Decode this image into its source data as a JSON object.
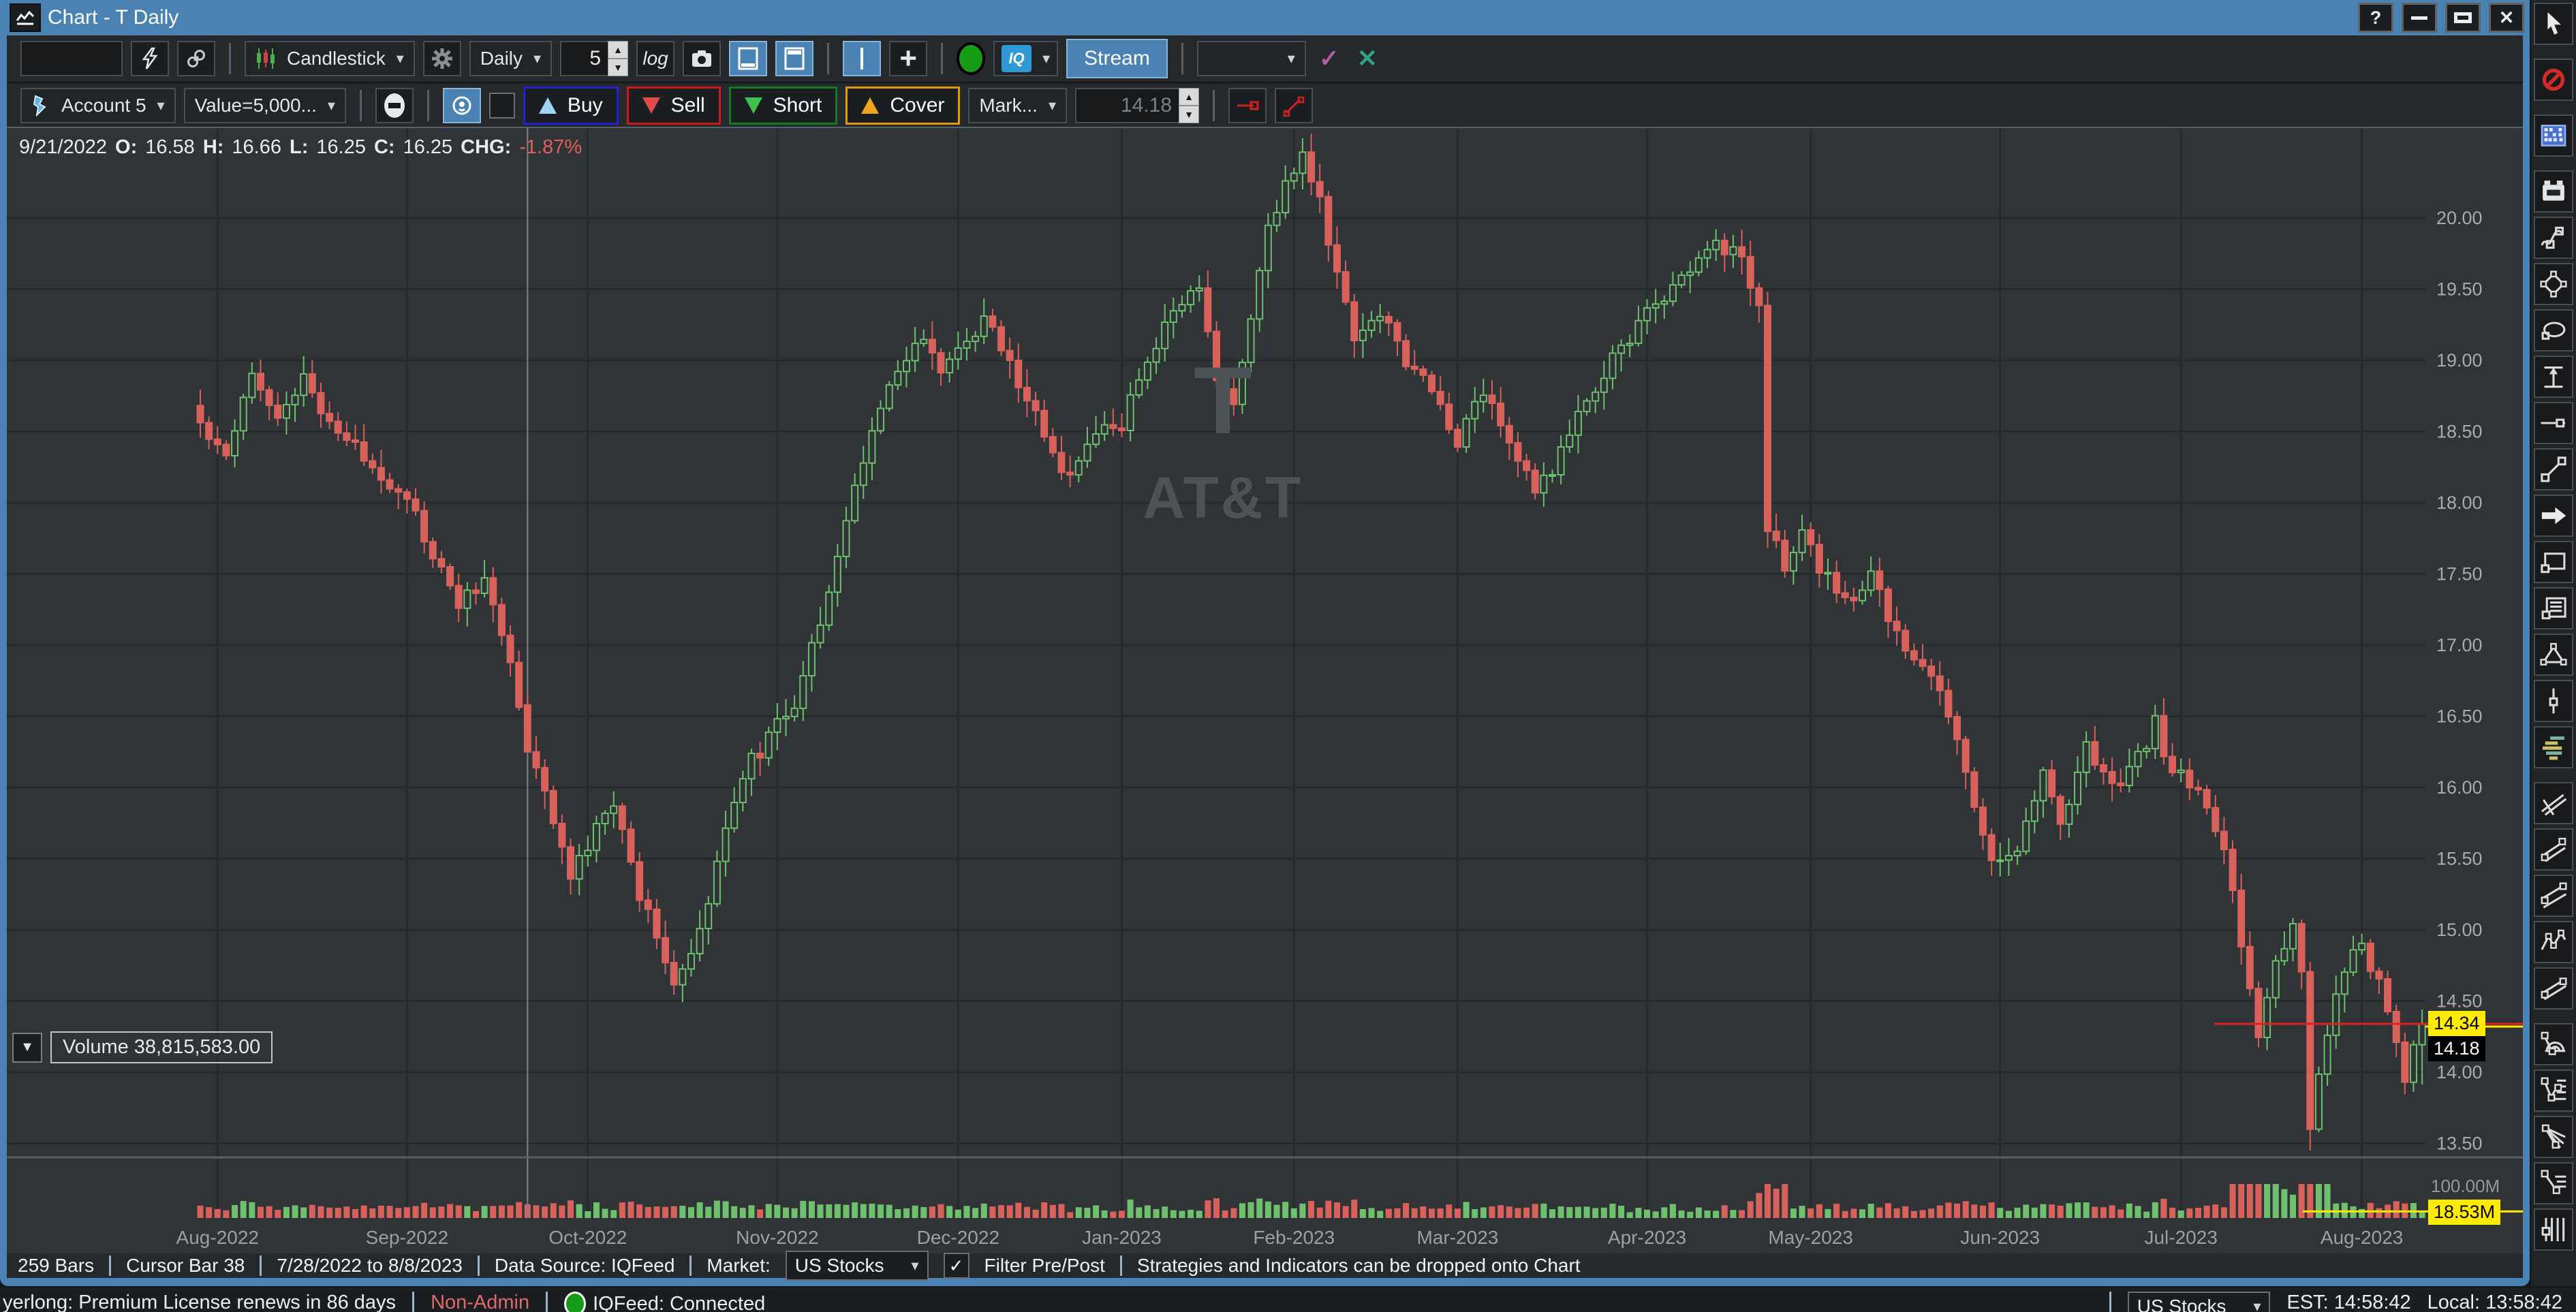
{
  "title_bar": {
    "title": "Chart - T Daily",
    "help": "?"
  },
  "icons": {
    "caret": "▾",
    "check": "✓",
    "cross": "✕",
    "spin_up": "▲",
    "spin_down": "▼",
    "vol_collapse": "▼",
    "close": "✕",
    "plus": "+"
  },
  "toolbar_main": {
    "symbol_input": "",
    "chart_type": "Candlestick",
    "timeframe": "Daily",
    "bars_value": "5",
    "log_label": "log",
    "iq_label": "IQ",
    "stream_label": "Stream",
    "order_dropdown_value": ""
  },
  "toolbar_trade": {
    "account": "Account 5",
    "position_size": "Value=5,000...",
    "buy": "Buy",
    "sell": "Sell",
    "short": "Short",
    "cover": "Cover",
    "order_type": "Mark...",
    "order_price": "14.18"
  },
  "chart": {
    "ohlc": {
      "date": "9/21/2022",
      "o_label": "O:",
      "o": "16.58",
      "h_label": "H:",
      "h": "16.66",
      "l_label": "L:",
      "l": "16.25",
      "c_label": "C:",
      "c": "16.25",
      "chg_label": "CHG:",
      "chg": "-1.87%"
    },
    "watermark_symbol": "T",
    "watermark_name": "AT&T",
    "price_tag": "14.34",
    "cursor_price_tag": "14.18",
    "volume_label": "Volume 38,815,583.00",
    "volume_axis_max": "100.00M",
    "volume_tag": "18.53M"
  },
  "chart_data": {
    "type": "candlestick",
    "symbol": "T",
    "company": "AT&T",
    "timeframe": "Daily",
    "bars": 259,
    "date_range": "7/28/2022 to 8/8/2023",
    "ylim": [
      13.39,
      20.63
    ],
    "price_tick_min": 13.5,
    "price_tick_max": 20.0,
    "price_tick_step": 0.5,
    "months": [
      [
        "Aug-2022",
        2
      ],
      [
        "Sep-2022",
        24
      ],
      [
        "Oct-2022",
        45
      ],
      [
        "Nov-2022",
        67
      ],
      [
        "Dec-2022",
        88
      ],
      [
        "Jan-2023",
        107
      ],
      [
        "Feb-2023",
        127
      ],
      [
        "Mar-2023",
        146
      ],
      [
        "Apr-2023",
        168
      ],
      [
        "May-2023",
        187
      ],
      [
        "Jun-2023",
        209
      ],
      [
        "Jul-2023",
        230
      ],
      [
        "Aug-2023",
        251
      ]
    ],
    "anchors": [
      [
        0,
        18.55
      ],
      [
        3,
        18.35
      ],
      [
        6,
        18.95
      ],
      [
        9,
        18.6
      ],
      [
        12,
        18.85
      ],
      [
        16,
        18.5
      ],
      [
        20,
        18.25
      ],
      [
        24,
        18.05
      ],
      [
        27,
        17.6
      ],
      [
        30,
        17.3
      ],
      [
        33,
        17.45
      ],
      [
        36,
        16.9
      ],
      [
        38,
        16.25
      ],
      [
        41,
        15.8
      ],
      [
        43,
        15.35
      ],
      [
        46,
        15.7
      ],
      [
        48,
        15.9
      ],
      [
        51,
        15.25
      ],
      [
        53,
        15.0
      ],
      [
        55,
        14.6
      ],
      [
        57,
        14.8
      ],
      [
        59,
        15.15
      ],
      [
        61,
        15.75
      ],
      [
        63,
        16.1
      ],
      [
        66,
        16.35
      ],
      [
        69,
        16.6
      ],
      [
        72,
        17.2
      ],
      [
        75,
        17.85
      ],
      [
        78,
        18.55
      ],
      [
        81,
        18.9
      ],
      [
        84,
        19.15
      ],
      [
        86,
        18.95
      ],
      [
        89,
        19.1
      ],
      [
        91,
        19.3
      ],
      [
        95,
        18.85
      ],
      [
        99,
        18.35
      ],
      [
        101,
        18.15
      ],
      [
        104,
        18.5
      ],
      [
        107,
        18.55
      ],
      [
        110,
        19.0
      ],
      [
        113,
        19.35
      ],
      [
        116,
        19.5
      ],
      [
        118,
        18.85
      ],
      [
        120,
        18.7
      ],
      [
        122,
        19.3
      ],
      [
        124,
        19.9
      ],
      [
        126,
        20.25
      ],
      [
        128,
        20.45
      ],
      [
        130,
        20.1
      ],
      [
        132,
        19.6
      ],
      [
        134,
        19.15
      ],
      [
        137,
        19.35
      ],
      [
        140,
        19.0
      ],
      [
        143,
        18.8
      ],
      [
        146,
        18.45
      ],
      [
        149,
        18.8
      ],
      [
        152,
        18.45
      ],
      [
        155,
        18.05
      ],
      [
        158,
        18.35
      ],
      [
        161,
        18.7
      ],
      [
        164,
        19.0
      ],
      [
        167,
        19.25
      ],
      [
        170,
        19.45
      ],
      [
        173,
        19.65
      ],
      [
        176,
        19.85
      ],
      [
        179,
        19.7
      ],
      [
        181,
        19.35
      ],
      [
        182,
        17.85
      ],
      [
        184,
        17.55
      ],
      [
        186,
        17.75
      ],
      [
        189,
        17.45
      ],
      [
        192,
        17.3
      ],
      [
        194,
        17.5
      ],
      [
        197,
        17.05
      ],
      [
        200,
        16.9
      ],
      [
        203,
        16.5
      ],
      [
        206,
        15.9
      ],
      [
        208,
        15.45
      ],
      [
        211,
        15.6
      ],
      [
        214,
        16.1
      ],
      [
        216,
        15.75
      ],
      [
        219,
        16.3
      ],
      [
        222,
        16.0
      ],
      [
        225,
        16.2
      ],
      [
        227,
        16.45
      ],
      [
        229,
        16.1
      ],
      [
        232,
        16.0
      ],
      [
        235,
        15.6
      ],
      [
        237,
        14.9
      ],
      [
        239,
        14.3
      ],
      [
        241,
        14.75
      ],
      [
        243,
        15.0
      ],
      [
        244,
        14.65
      ],
      [
        245,
        13.6
      ],
      [
        247,
        14.3
      ],
      [
        249,
        14.7
      ],
      [
        251,
        14.9
      ],
      [
        253,
        14.6
      ],
      [
        255,
        14.2
      ],
      [
        256,
        13.95
      ],
      [
        258,
        14.34
      ]
    ],
    "cursor_bar": 38,
    "cursor_bar_ohlc": {
      "open": 16.58,
      "high": 16.66,
      "low": 16.25,
      "close": 16.25
    },
    "last_close": 14.34,
    "last_volume_millions": 18.53,
    "volume_axis_max_millions": 100.0,
    "up_color": "#6ec06e",
    "down_color": "#d9615c",
    "background": "#303437",
    "grid_color": "#262a2c",
    "last_price_line_color": "#e02020",
    "tag_color": "#ffeb00"
  },
  "status_bar": {
    "bars": "259 Bars",
    "cursor": "Cursor Bar 38",
    "range": "7/28/2022 to 8/8/2023",
    "source": "Data Source: IQFeed",
    "market_label": "Market:",
    "market": "US Stocks",
    "filter": "Filter Pre/Post",
    "hint": "Strategies and Indicators can be dropped onto Chart"
  },
  "app_bar": {
    "license": "yerlong: Premium License renews in 86 days",
    "admin": "Non-Admin",
    "feed": "IQFeed: Connected",
    "market": "US Stocks",
    "est": "EST: 14:58:42",
    "local": "Local: 13:58:42"
  },
  "sidebar_tools": [
    "pointer",
    "eraser-ban",
    "matrix",
    "battery",
    "freehand",
    "polygon",
    "ellipse",
    "expansion",
    "horizontal-line",
    "trendline",
    "arrow",
    "rectangle",
    "note",
    "triangle",
    "vertical-line",
    "volume-profile",
    "pitchfork",
    "parallel-lines",
    "trend-channel",
    "zigzag",
    "channel",
    "fib-arcs",
    "fib-retracement",
    "fib-fan",
    "fib-extension",
    "fib-timezones"
  ]
}
